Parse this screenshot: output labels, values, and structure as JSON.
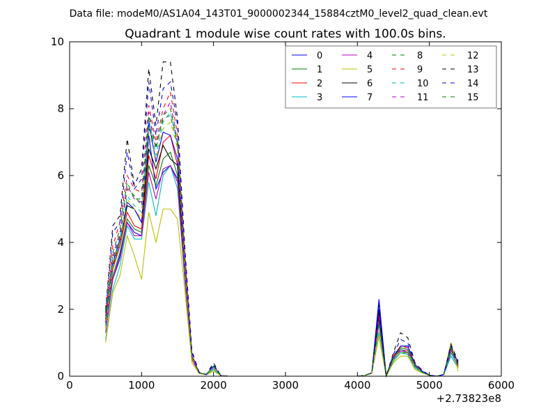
{
  "chart_data": {
    "type": "line",
    "suptitle": "Data file: modeM0/AS1A04_143T01_9000002344_15884cztM0_level2_quad_clean.evt",
    "title": "Quadrant 1 module wise count rates with 100.0s bins.",
    "xlabel": "",
    "ylabel": "",
    "xlim": [
      0,
      6000
    ],
    "ylim": [
      0,
      10
    ],
    "x_offset_label": "+2.73823e8",
    "xticks": [
      0,
      1000,
      2000,
      3000,
      4000,
      5000,
      6000
    ],
    "yticks": [
      0,
      2,
      4,
      6,
      8,
      10
    ],
    "grid": false,
    "legend_position": "top-right",
    "legend_columns": 4,
    "x": [
      500,
      600,
      700,
      800,
      900,
      1000,
      1100,
      1200,
      1300,
      1400,
      1500,
      1600,
      1700,
      1800,
      1900,
      2000,
      2100,
      2200,
      2300,
      4000,
      4100,
      4200,
      4300,
      4400,
      4500,
      4600,
      4700,
      4800,
      4900,
      5000,
      5100,
      5200,
      5300,
      5400
    ],
    "series": [
      {
        "name": "0",
        "color": "#0000ff",
        "dash": "solid",
        "values": [
          1.5,
          2.9,
          3.6,
          4.6,
          4.3,
          4.2,
          7.2,
          5.6,
          6.1,
          6.3,
          5.9,
          3.2,
          0.55,
          0.1,
          0.05,
          0.3,
          0.02,
          0.0,
          0.0,
          0.0,
          0.02,
          0.1,
          2.0,
          0.0,
          0.5,
          0.8,
          0.7,
          0.3,
          0.15,
          0.03,
          0.0,
          0.05,
          0.8,
          0.3
        ]
      },
      {
        "name": "1",
        "color": "#008000",
        "dash": "solid",
        "values": [
          1.5,
          3.0,
          3.7,
          4.7,
          4.4,
          4.3,
          6.3,
          5.7,
          6.5,
          6.7,
          6.0,
          3.0,
          0.5,
          0.1,
          0.05,
          0.2,
          0.02,
          0.0,
          0.0,
          0.0,
          0.02,
          0.1,
          1.2,
          0.0,
          0.45,
          0.7,
          0.7,
          0.25,
          0.1,
          0.03,
          0.0,
          0.05,
          0.6,
          0.25
        ]
      },
      {
        "name": "2",
        "color": "#ff0000",
        "dash": "solid",
        "values": [
          1.6,
          3.2,
          3.9,
          4.9,
          4.5,
          4.4,
          6.6,
          5.9,
          7.0,
          7.2,
          6.3,
          3.1,
          0.55,
          0.1,
          0.05,
          0.25,
          0.02,
          0.0,
          0.0,
          0.0,
          0.02,
          0.1,
          1.8,
          0.0,
          0.5,
          0.8,
          0.75,
          0.3,
          0.12,
          0.03,
          0.0,
          0.05,
          0.9,
          0.3
        ]
      },
      {
        "name": "3",
        "color": "#00bfbf",
        "dash": "solid",
        "values": [
          1.1,
          2.6,
          3.3,
          4.5,
          4.1,
          4.1,
          5.8,
          4.8,
          6.0,
          6.3,
          5.6,
          2.9,
          0.5,
          0.1,
          0.05,
          0.2,
          0.02,
          0.0,
          0.0,
          0.0,
          0.02,
          0.1,
          1.3,
          0.0,
          0.45,
          0.7,
          0.65,
          0.25,
          0.1,
          0.03,
          0.0,
          0.05,
          0.6,
          0.25
        ]
      },
      {
        "name": "4",
        "color": "#bf00bf",
        "dash": "solid",
        "values": [
          1.3,
          2.9,
          3.5,
          4.6,
          4.2,
          4.2,
          6.1,
          5.3,
          6.2,
          6.3,
          5.8,
          3.0,
          0.5,
          0.1,
          0.05,
          0.25,
          0.02,
          0.0,
          0.0,
          0.0,
          0.02,
          0.1,
          1.6,
          0.0,
          0.5,
          0.75,
          0.7,
          0.3,
          0.12,
          0.03,
          0.0,
          0.05,
          0.7,
          0.3
        ]
      },
      {
        "name": "5",
        "color": "#bfbf00",
        "dash": "solid",
        "values": [
          1.0,
          2.5,
          3.0,
          4.2,
          3.6,
          2.9,
          4.9,
          4.0,
          5.0,
          5.0,
          4.7,
          2.6,
          0.4,
          0.08,
          0.04,
          0.15,
          0.02,
          0.0,
          0.0,
          0.0,
          0.02,
          0.08,
          1.2,
          0.0,
          0.4,
          0.6,
          0.6,
          0.2,
          0.1,
          0.02,
          0.0,
          0.05,
          1.0,
          0.15
        ]
      },
      {
        "name": "6",
        "color": "#000000",
        "dash": "solid",
        "values": [
          1.6,
          3.3,
          4.0,
          5.1,
          5.0,
          4.6,
          6.8,
          6.2,
          6.9,
          6.5,
          6.3,
          3.3,
          0.6,
          0.1,
          0.05,
          0.3,
          0.02,
          0.0,
          0.0,
          0.0,
          0.02,
          0.1,
          2.2,
          0.0,
          0.55,
          0.9,
          0.9,
          0.35,
          0.15,
          0.03,
          0.0,
          0.05,
          0.8,
          0.35
        ]
      },
      {
        "name": "7",
        "color": "#0000ff",
        "dash": "solid",
        "values": [
          1.7,
          3.4,
          4.1,
          5.2,
          5.0,
          4.6,
          7.6,
          6.4,
          7.3,
          7.2,
          6.5,
          3.4,
          0.6,
          0.1,
          0.05,
          0.3,
          0.02,
          0.0,
          0.0,
          0.0,
          0.02,
          0.1,
          2.3,
          0.0,
          0.6,
          0.9,
          0.9,
          0.35,
          0.15,
          0.03,
          0.0,
          0.05,
          0.9,
          0.4
        ]
      },
      {
        "name": "8",
        "color": "#008000",
        "dash": "dashed",
        "values": [
          1.6,
          3.5,
          4.2,
          5.6,
          5.4,
          5.1,
          7.4,
          6.9,
          7.7,
          7.8,
          6.9,
          3.5,
          0.6,
          0.1,
          0.05,
          0.3,
          0.02,
          0.0,
          0.0,
          0.0,
          0.02,
          0.1,
          1.7,
          0.0,
          0.55,
          0.85,
          0.8,
          0.3,
          0.12,
          0.03,
          0.0,
          0.05,
          0.8,
          0.3
        ]
      },
      {
        "name": "9",
        "color": "#ff0000",
        "dash": "dashed",
        "values": [
          1.8,
          3.9,
          4.6,
          6.0,
          5.6,
          5.5,
          8.1,
          7.0,
          8.0,
          8.5,
          7.2,
          3.7,
          0.65,
          0.1,
          0.05,
          0.3,
          0.02,
          0.0,
          0.0,
          0.0,
          0.02,
          0.1,
          1.9,
          0.0,
          0.6,
          0.9,
          0.85,
          0.35,
          0.15,
          0.03,
          0.0,
          0.05,
          0.9,
          0.35
        ]
      },
      {
        "name": "10",
        "color": "#00bfbf",
        "dash": "dashed",
        "values": [
          1.5,
          3.3,
          4.0,
          5.4,
          5.1,
          4.9,
          7.7,
          6.6,
          7.6,
          7.9,
          6.9,
          3.4,
          0.6,
          0.1,
          0.05,
          0.25,
          0.02,
          0.0,
          0.0,
          0.0,
          0.02,
          0.1,
          1.5,
          0.0,
          0.5,
          0.8,
          0.75,
          0.3,
          0.12,
          0.03,
          0.0,
          0.05,
          0.7,
          0.3
        ]
      },
      {
        "name": "11",
        "color": "#bf00bf",
        "dash": "dashed",
        "values": [
          1.6,
          3.6,
          4.3,
          5.7,
          5.3,
          5.2,
          7.9,
          6.8,
          7.8,
          8.2,
          7.0,
          3.5,
          0.6,
          0.1,
          0.05,
          0.3,
          0.02,
          0.0,
          0.0,
          0.0,
          0.02,
          0.1,
          1.7,
          0.0,
          0.55,
          0.85,
          0.8,
          0.3,
          0.12,
          0.03,
          0.0,
          0.05,
          0.8,
          0.3
        ]
      },
      {
        "name": "12",
        "color": "#bfbf00",
        "dash": "dashed",
        "values": [
          1.4,
          3.4,
          4.0,
          5.3,
          5.0,
          4.7,
          7.3,
          6.5,
          7.4,
          7.6,
          6.8,
          3.3,
          0.55,
          0.1,
          0.05,
          0.25,
          0.02,
          0.0,
          0.0,
          0.0,
          0.02,
          0.1,
          1.4,
          0.0,
          0.5,
          0.75,
          0.7,
          0.3,
          0.12,
          0.03,
          0.0,
          0.05,
          1.0,
          0.25
        ]
      },
      {
        "name": "13",
        "color": "#000000",
        "dash": "dashed",
        "values": [
          2.0,
          4.5,
          4.8,
          7.1,
          5.7,
          6.2,
          9.2,
          7.5,
          9.4,
          9.4,
          7.7,
          3.9,
          0.75,
          0.12,
          0.05,
          0.4,
          0.02,
          0.0,
          0.0,
          0.0,
          0.02,
          0.1,
          1.9,
          0.0,
          0.7,
          1.3,
          1.15,
          0.4,
          0.18,
          0.03,
          0.0,
          0.05,
          0.95,
          0.45
        ]
      },
      {
        "name": "14",
        "color": "#0000ff",
        "dash": "dashed",
        "values": [
          1.9,
          4.3,
          4.6,
          6.7,
          5.6,
          5.9,
          8.8,
          7.2,
          8.6,
          8.8,
          7.5,
          3.8,
          0.7,
          0.12,
          0.05,
          0.35,
          0.02,
          0.0,
          0.0,
          0.0,
          0.02,
          0.1,
          2.0,
          0.0,
          0.65,
          1.1,
          1.0,
          0.4,
          0.16,
          0.03,
          0.0,
          0.05,
          0.9,
          0.4
        ]
      },
      {
        "name": "15",
        "color": "#008000",
        "dash": "dashed",
        "values": [
          1.7,
          3.7,
          4.4,
          5.8,
          5.3,
          5.3,
          7.8,
          6.8,
          7.8,
          8.0,
          7.0,
          3.5,
          0.6,
          0.1,
          0.05,
          0.3,
          0.02,
          0.0,
          0.0,
          0.0,
          0.02,
          0.1,
          1.6,
          0.0,
          0.55,
          0.85,
          0.8,
          0.3,
          0.12,
          0.03,
          0.0,
          0.05,
          0.85,
          0.3
        ]
      }
    ]
  }
}
